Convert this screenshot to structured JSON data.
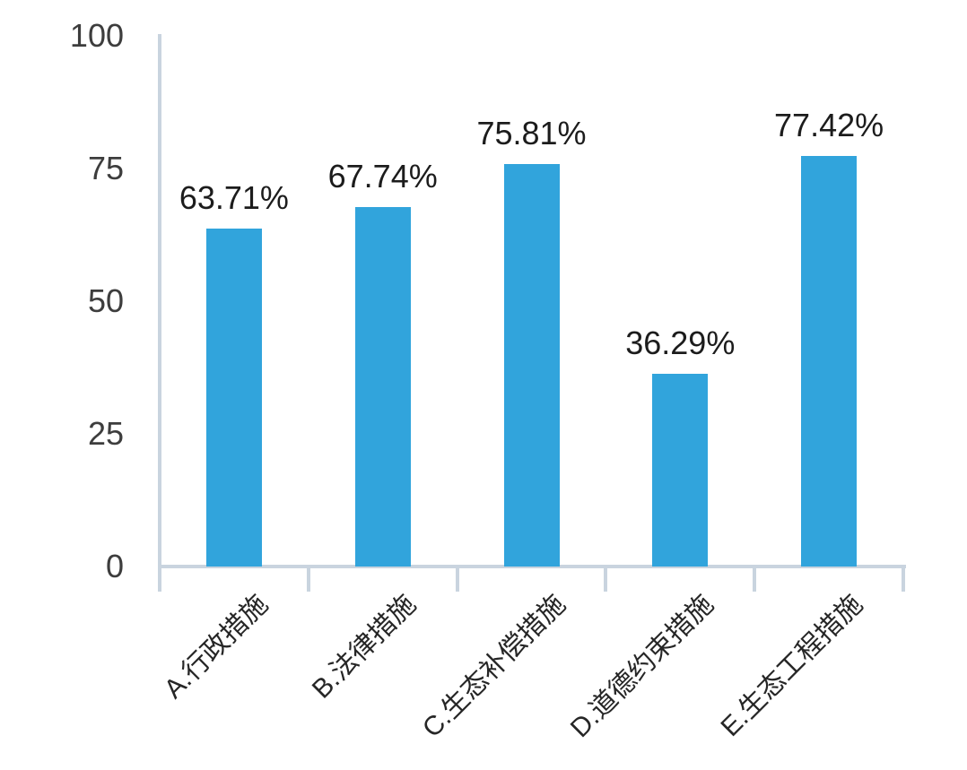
{
  "chart_data": {
    "type": "bar",
    "categories": [
      "A.行政措施",
      "B.法律措施",
      "C.生态补偿措施",
      "D.道德约束措施",
      "E.生态工程措施"
    ],
    "values": [
      63.71,
      67.74,
      75.81,
      36.29,
      77.42
    ],
    "value_labels": [
      "63.71%",
      "67.74%",
      "75.81%",
      "36.29%",
      "77.42%"
    ],
    "y_ticks": [
      0,
      25,
      50,
      75,
      100
    ],
    "y_tick_labels": [
      "0",
      "25",
      "50",
      "75",
      "100"
    ],
    "ylim": [
      0,
      100
    ],
    "bar_color": "#31a4dc",
    "axis_color": "#c9d4df",
    "grid": false,
    "legend_position": "none",
    "xlabel": "",
    "ylabel": ""
  }
}
